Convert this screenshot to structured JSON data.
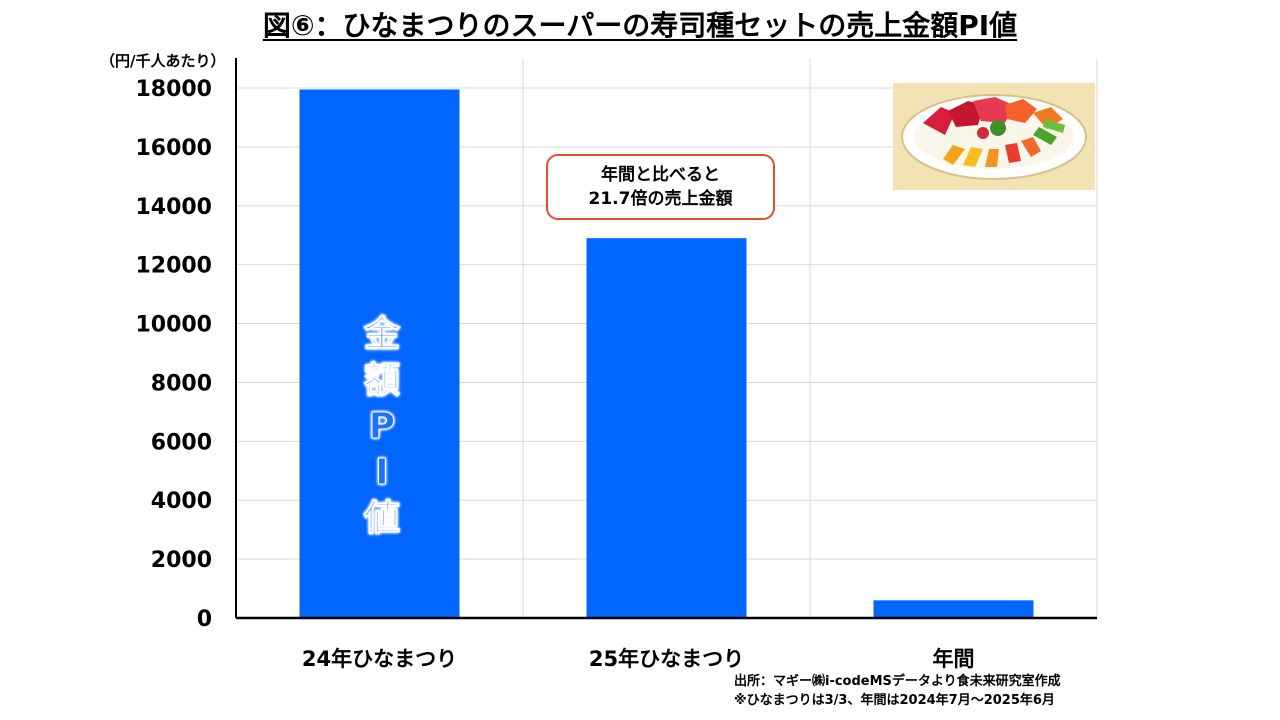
{
  "title": "図⑥：ひなまつりのスーパーの寿司種セットの売上金額PI値",
  "unit_label": "（円/千人あたり）",
  "callout": {
    "line1": "年間と比べると",
    "line2": "21.7倍の売上金額"
  },
  "vertical_label": [
    "金",
    "額",
    "P",
    "I",
    "値"
  ],
  "source": {
    "line1": "出所：マギー㈱i-codeMSデータより食未来研究室作成",
    "line2": "※ひなまつりは3/3、年間は2024年7月～2025年6月"
  },
  "illustration": "sushi-platter-icon",
  "colors": {
    "bar": "#0066ff",
    "callout_border": "#e0502a",
    "grid": "#d9d9d9"
  },
  "chart_data": {
    "type": "bar",
    "categories": [
      "24年ひなまつり",
      "25年ひなまつり",
      "年間"
    ],
    "values": [
      17950,
      12900,
      600
    ],
    "ylim": [
      0,
      18000
    ],
    "yticks": [
      0,
      2000,
      4000,
      6000,
      8000,
      10000,
      12000,
      14000,
      16000,
      18000
    ],
    "grid": true,
    "legend": "none"
  }
}
